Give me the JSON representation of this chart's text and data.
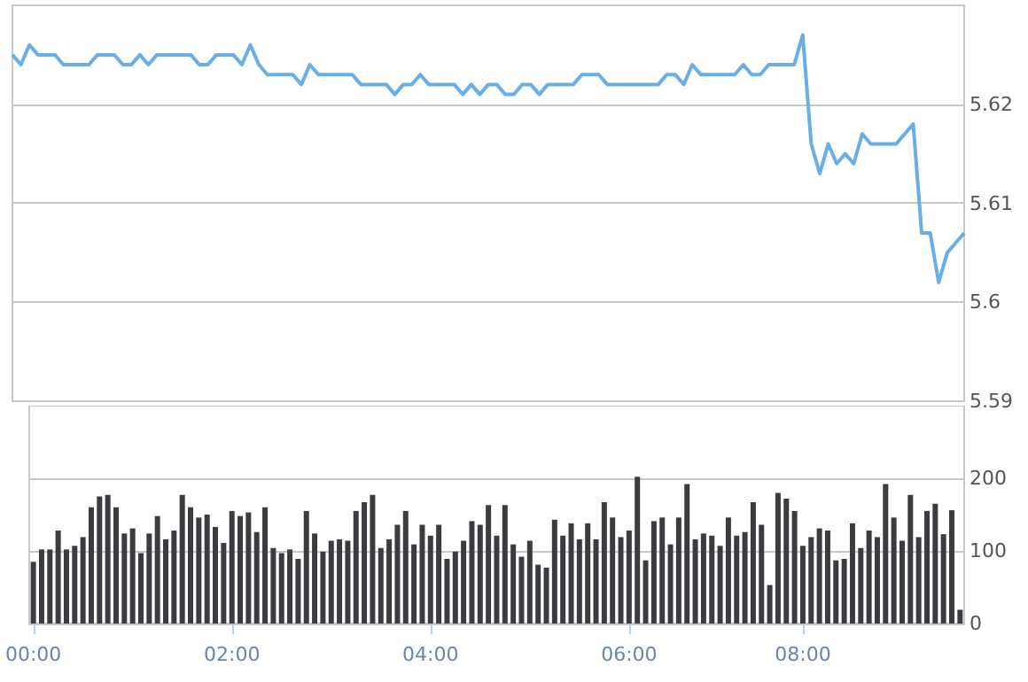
{
  "chart_data": [
    {
      "type": "line",
      "categories": [
        null,
        null,
        null,
        null,
        null,
        null,
        null,
        null,
        null,
        null,
        null,
        null,
        null,
        null,
        null,
        null,
        null,
        null,
        null,
        null,
        null,
        null,
        null,
        null,
        null,
        null,
        null,
        null,
        null,
        null,
        null,
        null,
        null,
        null,
        null,
        null,
        null,
        null,
        null,
        null,
        null,
        null,
        null,
        null,
        null,
        null,
        null,
        null,
        null,
        null,
        null,
        null,
        null,
        null,
        null,
        null,
        null,
        null,
        null,
        null,
        null,
        null,
        null,
        null,
        null,
        null,
        null,
        null,
        null,
        null,
        null,
        null,
        null,
        null,
        null,
        null,
        null,
        null,
        null,
        null,
        null,
        null,
        null,
        null,
        null,
        null,
        null,
        null,
        null,
        null,
        null,
        null,
        null,
        null,
        null,
        null,
        null,
        null,
        null,
        null,
        null,
        null,
        null,
        null,
        null,
        null,
        null,
        null,
        null,
        null,
        null,
        null,
        null
      ],
      "values": [
        5.625,
        5.624,
        5.626,
        5.625,
        5.625,
        5.625,
        5.624,
        5.624,
        5.624,
        5.624,
        5.625,
        5.625,
        5.625,
        5.624,
        5.624,
        5.625,
        5.624,
        5.625,
        5.625,
        5.625,
        5.625,
        5.625,
        5.624,
        5.624,
        5.625,
        5.625,
        5.625,
        5.624,
        5.626,
        5.624,
        5.623,
        5.623,
        5.623,
        5.623,
        5.622,
        5.624,
        5.623,
        5.623,
        5.623,
        5.623,
        5.623,
        5.622,
        5.622,
        5.622,
        5.622,
        5.621,
        5.622,
        5.622,
        5.623,
        5.622,
        5.622,
        5.622,
        5.622,
        5.621,
        5.622,
        5.621,
        5.622,
        5.622,
        5.621,
        5.621,
        5.622,
        5.622,
        5.621,
        5.622,
        5.622,
        5.622,
        5.622,
        5.623,
        5.623,
        5.623,
        5.622,
        5.622,
        5.622,
        5.622,
        5.622,
        5.622,
        5.622,
        5.623,
        5.623,
        5.622,
        5.624,
        5.623,
        5.623,
        5.623,
        5.623,
        5.623,
        5.624,
        5.623,
        5.623,
        5.624,
        5.624,
        5.624,
        5.624,
        5.627,
        5.616,
        5.613,
        5.616,
        5.614,
        5.615,
        5.614,
        5.617,
        5.616,
        5.616,
        5.616,
        5.616,
        5.617,
        5.618,
        5.607,
        5.607,
        5.602,
        5.605,
        5.606,
        5.607
      ],
      "color": "#6aaee8",
      "marker": "none",
      "ylim": [
        5.59,
        5.63
      ],
      "yticks": [
        5.59,
        5.6,
        5.61,
        5.62
      ],
      "grid": "y",
      "tick_labels": "y"
    },
    {
      "type": "bar",
      "categories": [
        "00:00",
        null,
        null,
        null,
        null,
        null,
        null,
        null,
        null,
        null,
        null,
        null,
        null,
        null,
        null,
        null,
        null,
        null,
        null,
        null,
        null,
        null,
        null,
        null,
        "02:00",
        null,
        null,
        null,
        null,
        null,
        null,
        null,
        null,
        null,
        null,
        null,
        null,
        null,
        null,
        null,
        null,
        null,
        null,
        null,
        null,
        null,
        null,
        null,
        "04:00",
        null,
        null,
        null,
        null,
        null,
        null,
        null,
        null,
        null,
        null,
        null,
        null,
        null,
        null,
        null,
        null,
        null,
        null,
        null,
        null,
        null,
        null,
        null,
        "06:00",
        null,
        null,
        null,
        null,
        null,
        null,
        null,
        null,
        null,
        null,
        null,
        null,
        null,
        null,
        null,
        null,
        null,
        null,
        null,
        null,
        "08:00",
        null,
        null,
        null,
        null,
        null,
        null,
        null,
        null,
        null,
        null,
        null,
        null,
        null,
        null,
        null,
        null,
        null,
        null,
        null
      ],
      "values": [
        85,
        102,
        102,
        128,
        102,
        107,
        119,
        160,
        175,
        177,
        160,
        124,
        131,
        97,
        124,
        148,
        116,
        128,
        177,
        160,
        146,
        150,
        133,
        111,
        155,
        148,
        153,
        126,
        160,
        104,
        97,
        102,
        89,
        155,
        124,
        99,
        114,
        116,
        114,
        155,
        167,
        177,
        104,
        116,
        136,
        155,
        109,
        136,
        121,
        136,
        89,
        99,
        114,
        141,
        136,
        163,
        121,
        163,
        109,
        92,
        114,
        81,
        77,
        143,
        121,
        138,
        116,
        138,
        116,
        167,
        146,
        119,
        128,
        202,
        87,
        141,
        146,
        109,
        146,
        192,
        116,
        124,
        121,
        107,
        146,
        121,
        126,
        167,
        136,
        53,
        180,
        172,
        155,
        107,
        119,
        131,
        128,
        87,
        89,
        138,
        104,
        128,
        119,
        192,
        146,
        114,
        177,
        119,
        155,
        165,
        123,
        156,
        19
      ],
      "color": "#3c3c40",
      "ylim": [
        0,
        300
      ],
      "yticks": [
        0,
        100,
        200
      ],
      "grid": "y"
    }
  ]
}
